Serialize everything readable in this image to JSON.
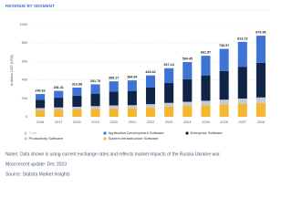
{
  "chart_data": {
    "type": "stacked_bar",
    "title": "REVENUE BY SEGMENT",
    "y_label": "in billion USD (US$)",
    "categories": [
      "2016",
      "2017",
      "2018",
      "2019",
      "2020",
      "2021",
      "2022",
      "2023",
      "2024",
      "2025",
      "2026",
      "2027",
      "2028"
    ],
    "series": [
      {
        "name": "System Infrastructure Software",
        "color": "#f5b731",
        "values": [
          70,
          75,
          80,
          85,
          90,
          92,
          100,
          110,
          118,
          125,
          133,
          141,
          150
        ]
      },
      {
        "name": "Productivity Software",
        "color": "#c4c9d2",
        "values": [
          25,
          27,
          29,
          31,
          33,
          34,
          37,
          41,
          45,
          49,
          53,
          57,
          60
        ]
      },
      {
        "name": "Enterprise Software",
        "color": "#0f2446",
        "values": [
          90,
          105,
          120,
          135,
          150,
          155,
          180,
          215,
          245,
          275,
          310,
          345,
          375
        ]
      },
      {
        "name": "Application Development Software",
        "color": "#3d74d6",
        "values": [
          62,
          74,
          88,
          101,
          112,
          114,
          132,
          161,
          186,
          213,
          241,
          270,
          295
        ]
      }
    ],
    "total": {
      "name": "Total",
      "values": [
        246.62,
        281.31,
        316.88,
        351.79,
        385.17,
        394.64,
        449.42,
        527.24,
        594.45,
        661.57,
        736.97,
        813.13,
        879.96
      ]
    },
    "ylim": [
      0,
      1000
    ],
    "yticks": [
      0,
      200,
      400,
      600,
      800,
      1000
    ],
    "grid": true,
    "notes": [
      "Notes: Data shown is using current exchange rates and reflects market impacts of the Russia-Ukraine war.",
      "Most recent update: Dec 2023",
      "Source: Statista Market Insights"
    ]
  }
}
